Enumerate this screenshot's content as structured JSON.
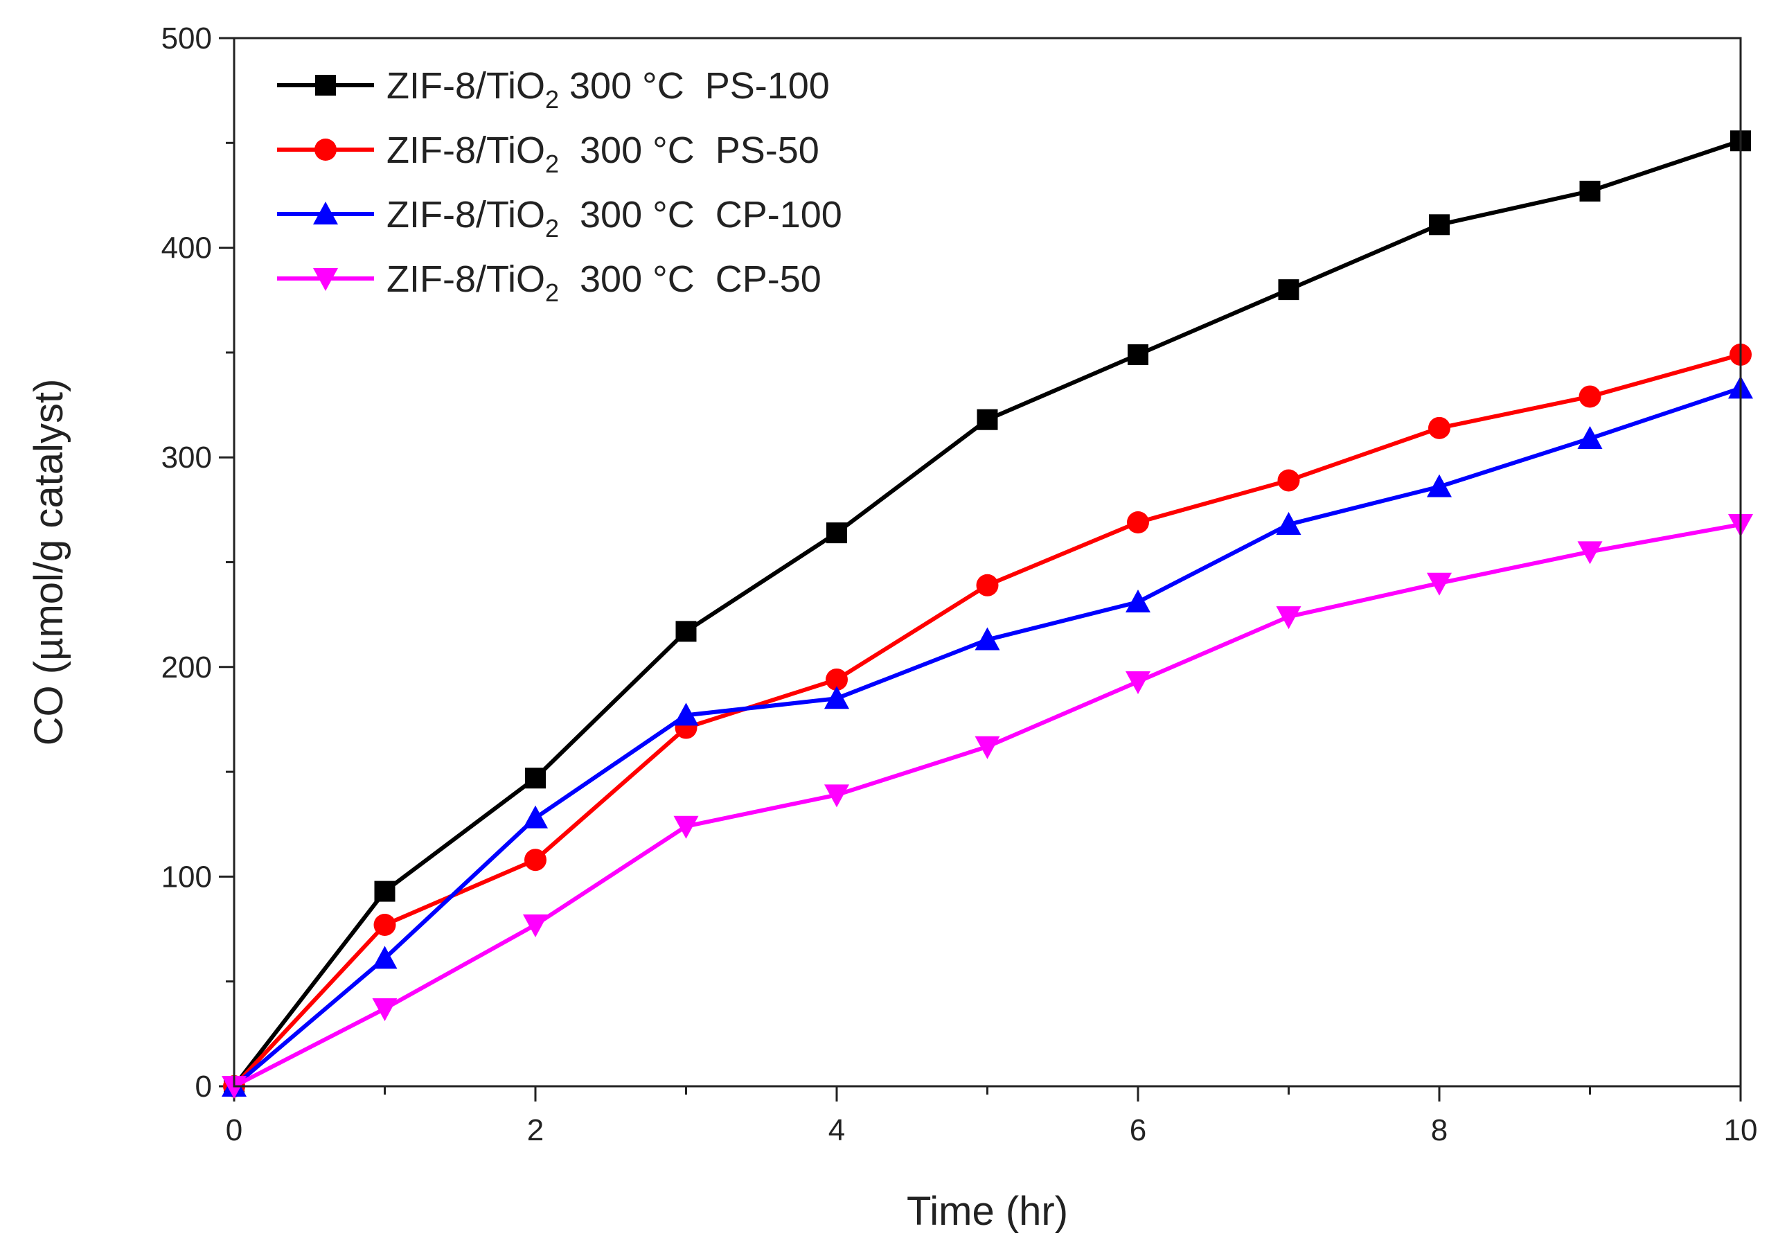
{
  "chart_data": {
    "type": "line",
    "title": "",
    "xlabel": "Time (hr)",
    "ylabel": "CO (µmol/g catalyst)",
    "xlim": [
      0,
      10
    ],
    "ylim": [
      0,
      500
    ],
    "x_ticks": [
      "0",
      "2",
      "4",
      "6",
      "8",
      "10"
    ],
    "y_ticks": [
      "0",
      "100",
      "200",
      "300",
      "400",
      "500"
    ],
    "x": [
      0,
      1,
      2,
      3,
      4,
      5,
      6,
      7,
      8,
      9,
      10
    ],
    "legend_position": "top-left",
    "series": [
      {
        "name": "ZIF-8/TiO2 300 °C PS-100",
        "legend": {
          "prefix": "ZIF-8/TiO",
          "sub": "2",
          "suffix": " 300 °C  PS-100"
        },
        "color": "#000000",
        "marker": "square",
        "values": [
          0,
          93,
          147,
          217,
          264,
          318,
          349,
          380,
          411,
          427,
          451
        ]
      },
      {
        "name": "ZIF-8/TiO2 300 °C PS-50",
        "legend": {
          "prefix": "ZIF-8/TiO",
          "sub": "2",
          "suffix": "  300 °C  PS-50"
        },
        "color": "#ff0000",
        "marker": "circle",
        "values": [
          0,
          77,
          108,
          171,
          194,
          239,
          269,
          289,
          314,
          329,
          349
        ]
      },
      {
        "name": "ZIF-8/TiO2 300 °C CP-100",
        "legend": {
          "prefix": "ZIF-8/TiO",
          "sub": "2",
          "suffix": "  300 °C  CP-100"
        },
        "color": "#0000ff",
        "marker": "triangle-up",
        "values": [
          0,
          61,
          128,
          177,
          185,
          213,
          231,
          268,
          286,
          309,
          333
        ]
      },
      {
        "name": "ZIF-8/TiO2 300 °C CP-50",
        "legend": {
          "prefix": "ZIF-8/TiO",
          "sub": "2",
          "suffix": "  300 °C  CP-50"
        },
        "color": "#ff00ff",
        "marker": "triangle-down",
        "values": [
          0,
          37,
          77,
          124,
          139,
          162,
          193,
          224,
          240,
          255,
          268
        ]
      }
    ]
  }
}
